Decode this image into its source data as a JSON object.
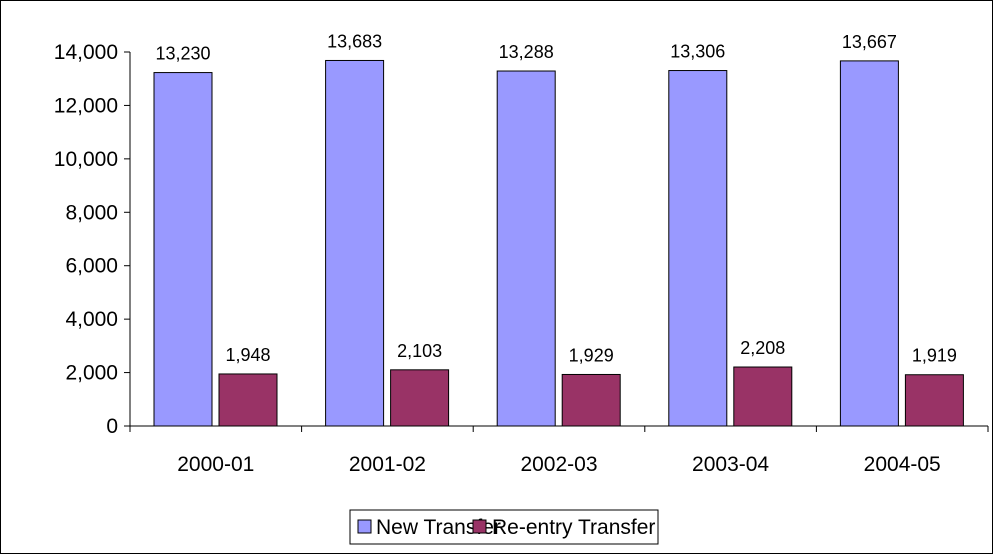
{
  "chart_data": {
    "type": "bar",
    "categories": [
      "2000-01",
      "2001-02",
      "2002-03",
      "2003-04",
      "2004-05"
    ],
    "series": [
      {
        "name": "New Transfer",
        "values": [
          13230,
          13683,
          13288,
          13306,
          13667
        ],
        "labels": [
          "13,230",
          "13,683",
          "13,288",
          "13,306",
          "13,667"
        ],
        "color": "#9999ff"
      },
      {
        "name": "Re-entry Transfer",
        "values": [
          1948,
          2103,
          1929,
          2208,
          1919
        ],
        "labels": [
          "1,948",
          "2,103",
          "1,929",
          "2,208",
          "1,919"
        ],
        "color": "#993366"
      }
    ],
    "y_ticks": [
      0,
      2000,
      4000,
      6000,
      8000,
      10000,
      12000,
      14000
    ],
    "y_tick_labels": [
      "0",
      "2,000",
      "4,000",
      "6,000",
      "8,000",
      "10,000",
      "12,000",
      "14,000"
    ],
    "ylim": [
      0,
      14000
    ],
    "title": "",
    "xlabel": "",
    "ylabel": "",
    "grid": false,
    "legend": "bottom"
  }
}
